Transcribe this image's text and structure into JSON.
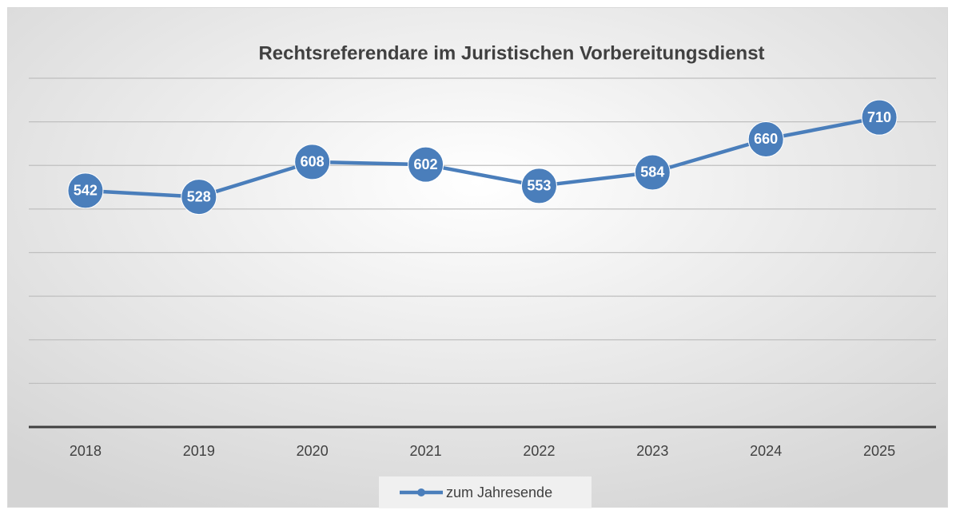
{
  "chart_data": {
    "type": "line",
    "title": "Rechtsreferendare im Juristischen Vorbereitungsdienst",
    "categories": [
      "2018",
      "2019",
      "2020",
      "2021",
      "2022",
      "2023",
      "2024",
      "2025"
    ],
    "series": [
      {
        "name": "zum Jahresende",
        "color": "#4a7ebb",
        "values": [
          542,
          528,
          608,
          602,
          553,
          584,
          660,
          710
        ]
      }
    ],
    "ylim": [
      0,
      800
    ],
    "yticks": [
      0,
      100,
      200,
      300,
      400,
      500,
      600,
      700,
      800
    ],
    "grid": true,
    "legend": "bottom"
  }
}
